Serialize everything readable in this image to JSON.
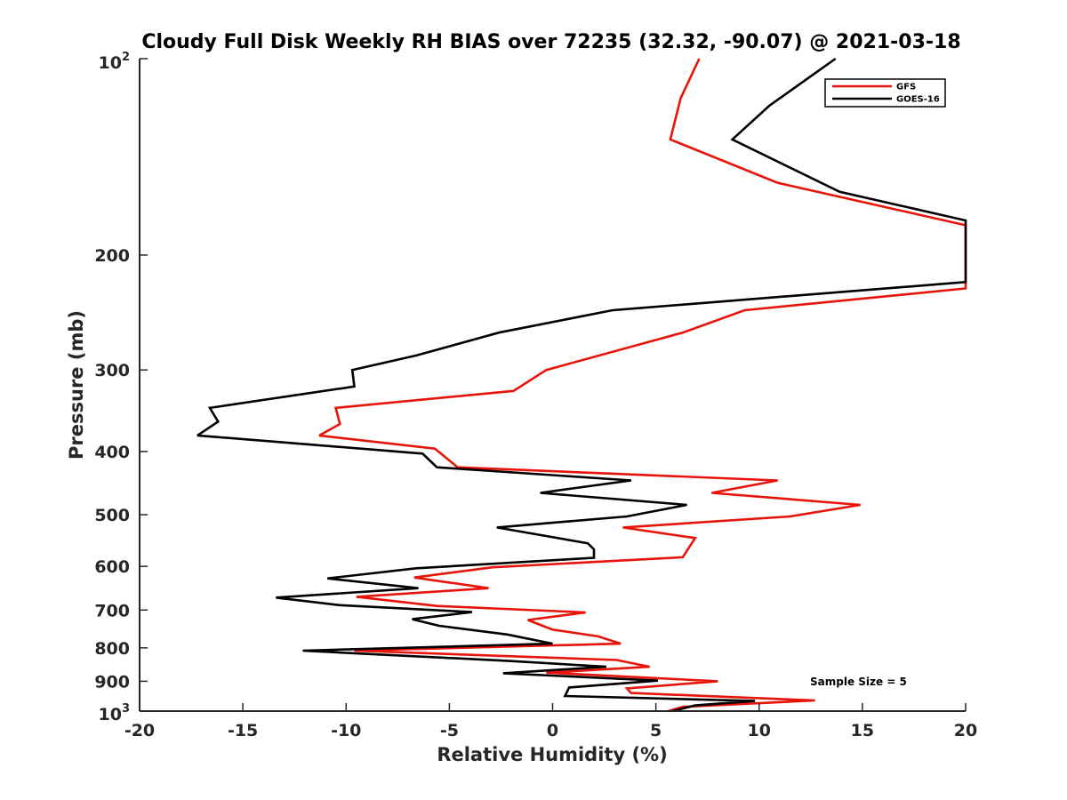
{
  "chart_data": {
    "type": "line",
    "title": "Cloudy Full Disk Weekly RH BIAS over 72235 (32.32, -90.07) @ 2021-03-18",
    "xlabel": "Relative Humidity (%)",
    "ylabel": "Pressure (mb)",
    "xlim": [
      -20,
      20
    ],
    "ylim": [
      100,
      1000
    ],
    "yscale": "log",
    "yreversed": true,
    "x_ticks": [
      "-20",
      "-15",
      "-10",
      "-5",
      "0",
      "5",
      "10",
      "15",
      "20"
    ],
    "y_ticks": [
      {
        "value": 200,
        "label": "200"
      },
      {
        "value": 300,
        "label": "300"
      },
      {
        "value": 400,
        "label": "400"
      },
      {
        "value": 500,
        "label": "500"
      },
      {
        "value": 600,
        "label": "600"
      },
      {
        "value": 700,
        "label": "700"
      },
      {
        "value": 800,
        "label": "800"
      },
      {
        "value": 900,
        "label": "900"
      }
    ],
    "y_tick_top": {
      "value": 100,
      "base": "10",
      "exp": "2"
    },
    "y_tick_bottom": {
      "value": 1000,
      "base": "10",
      "exp": "3"
    },
    "annotation": "Sample Size = 5",
    "legend_position": "top-right",
    "series": [
      {
        "name": "GFS",
        "color": "#e8140a",
        "points": [
          [
            7.1,
            100
          ],
          [
            6.2,
            115
          ],
          [
            5.7,
            133
          ],
          [
            10.9,
            155
          ],
          [
            20,
            180
          ],
          [
            20,
            225
          ],
          [
            9.3,
            243
          ],
          [
            6.3,
            263
          ],
          [
            -0.3,
            300
          ],
          [
            -1.9,
            323
          ],
          [
            -10.5,
            343
          ],
          [
            -10.3,
            363
          ],
          [
            -11.3,
            378
          ],
          [
            -5.7,
            396
          ],
          [
            -4.6,
            423
          ],
          [
            10.9,
            443
          ],
          [
            7.7,
            463
          ],
          [
            14.9,
            483
          ],
          [
            11.5,
            503
          ],
          [
            3.4,
            523
          ],
          [
            6.9,
            543
          ],
          [
            6.3,
            581
          ],
          [
            -2.9,
            602
          ],
          [
            -6.7,
            624
          ],
          [
            -3.1,
            648
          ],
          [
            -9.5,
            668
          ],
          [
            -5.6,
            690
          ],
          [
            1.6,
            706
          ],
          [
            -1.2,
            725
          ],
          [
            0,
            750
          ],
          [
            2.2,
            768
          ],
          [
            3.3,
            788
          ],
          [
            -9.6,
            808
          ],
          [
            3.1,
            835
          ],
          [
            4.7,
            855
          ],
          [
            -0.3,
            873
          ],
          [
            8.0,
            900
          ],
          [
            3.6,
            923
          ],
          [
            3.8,
            938
          ],
          [
            12.7,
            963
          ],
          [
            6.3,
            985
          ],
          [
            5.6,
            1000
          ]
        ]
      },
      {
        "name": "GOES-16",
        "color": "#000000",
        "points": [
          [
            13.7,
            100
          ],
          [
            10.5,
            118
          ],
          [
            8.7,
            133
          ],
          [
            13.9,
            160
          ],
          [
            20,
            177
          ],
          [
            20,
            220
          ],
          [
            2.9,
            243
          ],
          [
            -2.6,
            263
          ],
          [
            -6.6,
            285
          ],
          [
            -9.7,
            300
          ],
          [
            -9.6,
            318
          ],
          [
            -16.6,
            343
          ],
          [
            -16.2,
            360
          ],
          [
            -17.2,
            378
          ],
          [
            -6.3,
            403
          ],
          [
            -5.6,
            423
          ],
          [
            3.8,
            443
          ],
          [
            -0.6,
            463
          ],
          [
            6.5,
            483
          ],
          [
            3.6,
            503
          ],
          [
            -2.7,
            523
          ],
          [
            1.7,
            553
          ],
          [
            2.0,
            565
          ],
          [
            2.0,
            582
          ],
          [
            -6.6,
            604
          ],
          [
            -10.9,
            626
          ],
          [
            -6.5,
            648
          ],
          [
            -13.4,
            670
          ],
          [
            -10.3,
            688
          ],
          [
            -3.9,
            705
          ],
          [
            -6.8,
            723
          ],
          [
            -5.5,
            740
          ],
          [
            -2.2,
            763
          ],
          [
            0,
            788
          ],
          [
            -12.1,
            808
          ],
          [
            -2.0,
            838
          ],
          [
            2.6,
            855
          ],
          [
            -2.4,
            875
          ],
          [
            5.1,
            898
          ],
          [
            0.8,
            920
          ],
          [
            0.6,
            948
          ],
          [
            9.8,
            965
          ],
          [
            6.9,
            980
          ],
          [
            5.8,
            1000
          ]
        ]
      }
    ]
  }
}
